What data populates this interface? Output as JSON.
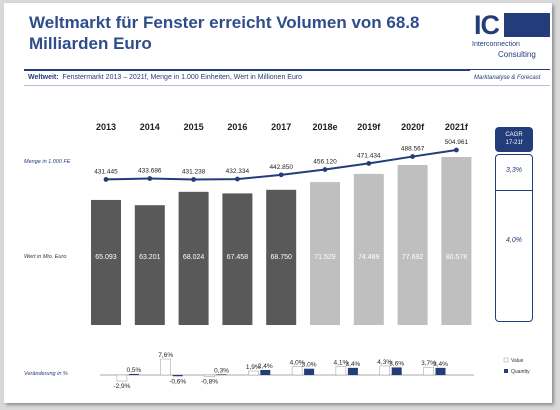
{
  "header": {
    "title": "Weltmarkt für Fenster erreicht Volumen von 68.8 Milliarden Euro",
    "subtitle_bold": "Weltweit:",
    "subtitle_rest": "Fenstermarkt 2013 – 2021f, Menge in 1.000 Einheiten, Wert in Millionen Euro",
    "tag": "Marktanalyse & Forecast"
  },
  "logo": {
    "ic": "IC",
    "line1": "Interconnection",
    "line2": "Consulting"
  },
  "colors": {
    "primary": "#233d7a",
    "bar_actual": "#595959",
    "bar_forecast": "#bfbfbf"
  },
  "cagr": {
    "label_line1": "CAGR",
    "label_line2": "17-21f",
    "quantity": "3,3%",
    "value": "4,0%"
  },
  "chart_data": {
    "type": "bar",
    "categories": [
      "2013",
      "2014",
      "2015",
      "2016",
      "2017",
      "2018e",
      "2019f",
      "2020f",
      "2021f"
    ],
    "quantity_label": "Menge in 1.000 FE",
    "value_label": "Wert in Mio. Euro",
    "change_label": "Veränderung in %",
    "quantity_values": [
      431445,
      433686,
      431238,
      432334,
      442850,
      456120,
      471434,
      488567,
      504961
    ],
    "quantity_text": [
      "431.445",
      "433.686",
      "431.238",
      "432.334",
      "442.850",
      "456.120",
      "471.434",
      "488.567",
      "504.961"
    ],
    "value_values": [
      65093,
      63201,
      68024,
      67458,
      68750,
      71529,
      74489,
      77692,
      80578
    ],
    "value_text": [
      "65.093",
      "63.201",
      "68.024",
      "67.458",
      "68.750",
      "71.529",
      "74.489",
      "77.692",
      "80.578"
    ],
    "forecast_from_index": 5,
    "change": {
      "value": [
        -2.9,
        7.6,
        -0.8,
        1.9,
        4.0,
        4.1,
        4.3,
        3.7
      ],
      "value_text": [
        "-2,9%",
        "7,6%",
        "-0,8%",
        "1,9%",
        "4,0%",
        "4,1%",
        "4,3%",
        "3,7%"
      ],
      "quantity": [
        0.5,
        -0.6,
        0.3,
        2.4,
        3.0,
        3.4,
        3.6,
        3.4
      ],
      "quantity_text": [
        "0,5%",
        "-0,6%",
        "0,3%",
        "2,4%",
        "3,0%",
        "3,4%",
        "3,6%",
        "3,4%"
      ]
    },
    "legend": [
      "Value",
      "Quantity"
    ]
  }
}
